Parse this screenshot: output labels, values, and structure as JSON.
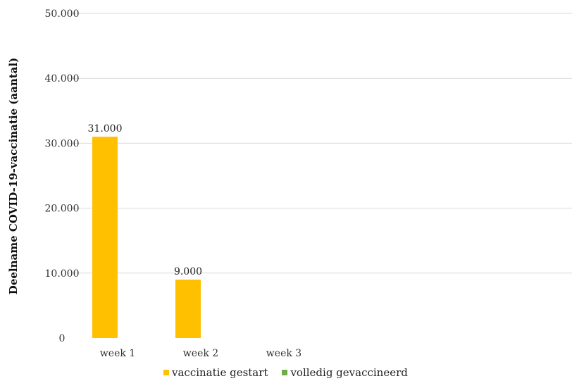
{
  "chart_data": {
    "type": "bar",
    "title": "",
    "xlabel": "",
    "ylabel": "Deelname COVID-19-vaccinatie  (aantal)",
    "categories": [
      "week 1",
      "week 2",
      "week 3"
    ],
    "ylim": [
      0,
      50000
    ],
    "yticks": [
      0,
      10000,
      20000,
      30000,
      40000,
      50000
    ],
    "ytick_labels": [
      "0",
      "10.000",
      "20.000",
      "30.000",
      "40.000",
      "50.000"
    ],
    "grid": true,
    "legend_position": "bottom",
    "series": [
      {
        "name": "vaccinatie gestart",
        "color": "#FFC000",
        "values": [
          31000,
          9000,
          null
        ],
        "labels": [
          "31.000",
          "9.000",
          ""
        ]
      },
      {
        "name": "volledig gevaccineerd",
        "color": "#70AD47",
        "values": [
          null,
          null,
          null
        ],
        "labels": [
          "",
          "",
          ""
        ]
      }
    ]
  }
}
